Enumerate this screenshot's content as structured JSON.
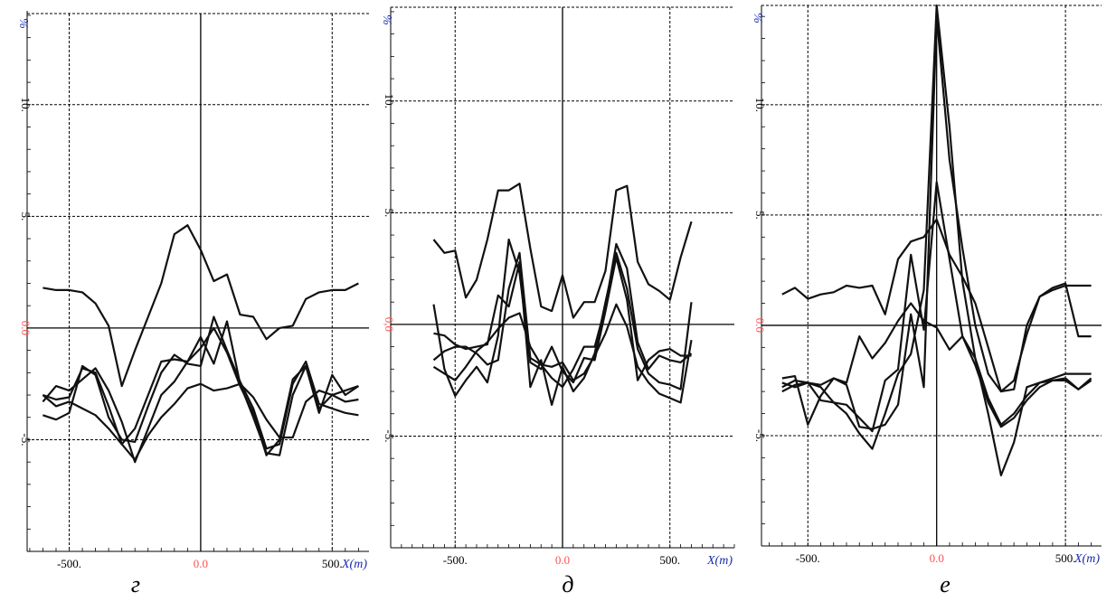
{
  "colors": {
    "line": "#111111",
    "unit_label": "#1a2bb0",
    "zero_label": "#ff5050",
    "grid": "#000000"
  },
  "chart_data": [
    {
      "type": "line",
      "panel_label": "г",
      "ylabel": "%",
      "xlabel": "X(m)",
      "xlim": [
        -660,
        640
      ],
      "ylim": [
        -10,
        14.2
      ],
      "x_ticks": [
        -500,
        0,
        500
      ],
      "x_tick_labels": [
        "-500.",
        "0.0",
        "500."
      ],
      "y_ticks": [
        -5,
        0,
        5,
        10
      ],
      "y_tick_labels": [
        "-5.",
        "0.0",
        "5.",
        "10."
      ],
      "grid": true,
      "series": [
        {
          "x": [
            -600,
            -550,
            -500,
            -450,
            -400,
            -350,
            -300,
            -250,
            -200,
            -150,
            -100,
            -50,
            0,
            50,
            100,
            150,
            200,
            250,
            300,
            350,
            400,
            450,
            500,
            550,
            600
          ],
          "y": [
            1.8,
            1.7,
            1.7,
            1.6,
            1.1,
            0.1,
            -2.6,
            -1.0,
            0.5,
            2.0,
            4.2,
            4.6,
            3.5,
            2.1,
            2.4,
            0.6,
            0.5,
            -0.5,
            0.0,
            0.1,
            1.3,
            1.6,
            1.7,
            1.7,
            2.0
          ]
        },
        {
          "x": [
            -600,
            -550,
            -500,
            -450,
            -400,
            -350,
            -300,
            -250,
            -200,
            -150,
            -100,
            -50,
            0,
            50,
            100,
            150,
            200,
            250,
            300,
            350,
            400,
            450,
            500,
            550,
            600
          ],
          "y": [
            -3.0,
            -3.2,
            -3.1,
            -1.8,
            -2.0,
            -3.5,
            -5.2,
            -4.5,
            -3.0,
            -1.5,
            -1.4,
            -1.5,
            -0.4,
            -1.6,
            0.3,
            -2.5,
            -4.0,
            -5.6,
            -5.7,
            -3.0,
            -1.7,
            -3.8,
            -2.1,
            -3.0,
            -2.6
          ]
        },
        {
          "x": [
            -600,
            -550,
            -500,
            -450,
            -400,
            -350,
            -300,
            -250,
            -200,
            -150,
            -100,
            -50,
            0,
            50,
            100,
            150,
            200,
            250,
            300,
            350,
            400,
            450,
            500,
            550,
            600
          ],
          "y": [
            -3.9,
            -4.1,
            -3.8,
            -1.7,
            -2.1,
            -4.0,
            -5.0,
            -5.1,
            -3.5,
            -2.0,
            -1.2,
            -1.6,
            -1.7,
            0.5,
            -1.0,
            -2.4,
            -3.6,
            -5.4,
            -5.2,
            -2.5,
            -1.5,
            -3.4,
            -3.6,
            -3.8,
            -3.9
          ]
        },
        {
          "x": [
            -600,
            -550,
            -500,
            -450,
            -400,
            -350,
            -300,
            -250,
            -200,
            -150,
            -100,
            -50,
            0,
            50,
            100,
            150,
            200,
            250,
            300,
            350,
            400,
            450,
            500,
            550,
            600
          ],
          "y": [
            -3.3,
            -2.6,
            -2.8,
            -2.3,
            -1.8,
            -2.8,
            -4.2,
            -6.0,
            -4.5,
            -3.0,
            -2.4,
            -1.5,
            -0.9,
            0.0,
            -1.1,
            -2.6,
            -3.8,
            -5.7,
            -5.0,
            -2.3,
            -1.7,
            -3.6,
            -3.0,
            -2.8,
            -2.6
          ]
        },
        {
          "x": [
            -600,
            -550,
            -500,
            -450,
            -400,
            -350,
            -300,
            -250,
            -200,
            -150,
            -100,
            -50,
            0,
            50,
            100,
            150,
            200,
            250,
            300,
            350,
            400,
            450,
            500,
            550,
            600
          ],
          "y": [
            -3.0,
            -3.5,
            -3.3,
            -3.6,
            -3.9,
            -4.5,
            -5.2,
            -5.9,
            -4.8,
            -4.0,
            -3.4,
            -2.7,
            -2.5,
            -2.8,
            -2.7,
            -2.5,
            -3.1,
            -4.1,
            -4.9,
            -4.9,
            -3.3,
            -2.8,
            -3.0,
            -3.3,
            -3.2
          ]
        }
      ]
    },
    {
      "type": "line",
      "panel_label": "д",
      "ylabel": "%",
      "xlabel": "X(m)",
      "xlim": [
        -800,
        800
      ],
      "ylim": [
        -10,
        14.2
      ],
      "x_ticks": [
        -500,
        0,
        500
      ],
      "x_tick_labels": [
        "-500.",
        "0.0",
        "500."
      ],
      "y_ticks": [
        -5,
        0,
        5,
        10
      ],
      "y_tick_labels": [
        "-5.",
        "0,0",
        "5.",
        "10."
      ],
      "grid": true,
      "series": [
        {
          "x": [
            -600,
            -550,
            -500,
            -450,
            -400,
            -350,
            -300,
            -250,
            -200,
            -150,
            -100,
            -50,
            0,
            50,
            100,
            150,
            200,
            250,
            300,
            350,
            400,
            450,
            500,
            550,
            600
          ],
          "y": [
            3.8,
            3.2,
            3.3,
            1.2,
            2.0,
            3.8,
            6.0,
            6.0,
            6.3,
            3.4,
            0.8,
            0.6,
            2.2,
            0.3,
            1.0,
            1.0,
            2.4,
            6.0,
            6.2,
            2.8,
            1.8,
            1.5,
            1.1,
            3.0,
            4.6
          ]
        },
        {
          "x": [
            -600,
            -550,
            -500,
            -450,
            -400,
            -350,
            -300,
            -250,
            -200,
            -150,
            -100,
            -50,
            0,
            50,
            100,
            150,
            200,
            250,
            300,
            350,
            400,
            450,
            500,
            550,
            600
          ],
          "y": [
            0.9,
            -2.0,
            -3.2,
            -2.5,
            -1.9,
            -2.6,
            -0.5,
            3.8,
            2.3,
            -1.7,
            -2.0,
            -1.0,
            -2.1,
            -2.6,
            -1.5,
            -1.6,
            0.6,
            3.0,
            1.1,
            -2.5,
            -1.6,
            -1.2,
            -1.1,
            -1.4,
            -1.4
          ]
        },
        {
          "x": [
            -600,
            -550,
            -500,
            -450,
            -400,
            -350,
            -300,
            -250,
            -200,
            -150,
            -100,
            -50,
            0,
            50,
            100,
            150,
            200,
            250,
            300,
            350,
            400,
            450,
            500,
            550,
            600
          ],
          "y": [
            -1.6,
            -1.2,
            -1.0,
            -1.0,
            -1.3,
            -1.8,
            -1.6,
            1.6,
            3.2,
            -1.5,
            -1.8,
            -2.4,
            -2.8,
            -2.0,
            -1.0,
            -1.0,
            0.8,
            3.6,
            2.5,
            -0.8,
            -2.0,
            -1.4,
            -1.6,
            -1.7,
            -1.3
          ]
        },
        {
          "x": [
            -600,
            -550,
            -500,
            -450,
            -400,
            -350,
            -300,
            -250,
            -200,
            -150,
            -100,
            -50,
            0,
            50,
            100,
            150,
            200,
            250,
            300,
            350,
            400,
            450,
            500,
            550,
            600
          ],
          "y": [
            -0.4,
            -0.5,
            -0.9,
            -1.1,
            -1.0,
            -0.9,
            1.3,
            0.8,
            2.8,
            -2.8,
            -1.6,
            -3.6,
            -1.9,
            -3.0,
            -2.4,
            -1.3,
            1.0,
            3.2,
            1.6,
            -1.1,
            -2.2,
            -2.6,
            -2.7,
            -2.9,
            1.0
          ]
        },
        {
          "x": [
            -600,
            -550,
            -500,
            -450,
            -400,
            -350,
            -300,
            -250,
            -200,
            -150,
            -100,
            -50,
            0,
            50,
            100,
            150,
            200,
            250,
            300,
            350,
            400,
            450,
            500,
            550,
            600
          ],
          "y": [
            -1.9,
            -2.2,
            -2.5,
            -1.9,
            -1.2,
            -0.8,
            -0.2,
            0.3,
            0.5,
            -1.0,
            -1.8,
            -1.9,
            -1.7,
            -2.5,
            -2.2,
            -1.4,
            -0.4,
            0.9,
            -0.1,
            -1.9,
            -2.6,
            -3.1,
            -3.3,
            -3.5,
            -0.7
          ]
        }
      ]
    },
    {
      "type": "line",
      "panel_label": "е",
      "ylabel": "%",
      "xlabel": "X(m)",
      "xlim": [
        -680,
        640
      ],
      "ylim": [
        -10,
        14.5
      ],
      "x_ticks": [
        -500,
        0,
        500
      ],
      "x_tick_labels": [
        "-500.",
        "0.0",
        "500."
      ],
      "y_ticks": [
        -5,
        0,
        5,
        10
      ],
      "y_tick_labels": [
        "-5.",
        "0.0",
        "5.",
        "10."
      ],
      "grid": true,
      "series": [
        {
          "x": [
            -600,
            -550,
            -500,
            -450,
            -400,
            -350,
            -300,
            -250,
            -200,
            -150,
            -100,
            -50,
            0,
            50,
            100,
            150,
            200,
            250,
            300,
            350,
            400,
            450,
            500,
            550,
            600
          ],
          "y": [
            1.4,
            1.7,
            1.2,
            1.4,
            1.5,
            1.8,
            1.7,
            1.8,
            0.5,
            3.0,
            3.8,
            4.0,
            4.8,
            3.2,
            2.2,
            1.0,
            -1.0,
            -3.0,
            -2.9,
            0.0,
            1.3,
            1.7,
            1.9,
            -0.5,
            -0.5
          ]
        },
        {
          "x": [
            -600,
            -550,
            -500,
            -450,
            -400,
            -350,
            -300,
            -250,
            -200,
            -150,
            -100,
            -50,
            0,
            50,
            100,
            150,
            200,
            250,
            300,
            350,
            400,
            450,
            500,
            550,
            600
          ],
          "y": [
            -2.4,
            -2.3,
            -4.5,
            -3.2,
            -2.4,
            -2.7,
            -4.6,
            -4.7,
            -4.5,
            -3.6,
            0.5,
            -2.8,
            14.0,
            7.5,
            3.5,
            0.0,
            -2.2,
            -3.0,
            -2.5,
            -0.4,
            1.3,
            1.6,
            1.8,
            1.8,
            1.8
          ]
        },
        {
          "x": [
            -600,
            -550,
            -500,
            -450,
            -400,
            -350,
            -300,
            -250,
            -200,
            -150,
            -100,
            -50,
            0,
            50,
            100,
            150,
            200,
            250,
            300,
            350,
            400,
            450,
            500,
            550,
            600
          ],
          "y": [
            -3.0,
            -2.7,
            -2.6,
            -2.8,
            -3.5,
            -4.0,
            -4.9,
            -5.6,
            -4.0,
            -2.2,
            -1.3,
            1.6,
            14.5,
            9.0,
            2.0,
            -1.5,
            -4.0,
            -6.8,
            -5.3,
            -2.8,
            -2.6,
            -2.4,
            -2.2,
            -2.2,
            -2.2
          ]
        },
        {
          "x": [
            -600,
            -550,
            -500,
            -450,
            -400,
            -350,
            -300,
            -250,
            -200,
            -150,
            -100,
            -50,
            0,
            50,
            100,
            150,
            200,
            250,
            300,
            350,
            400,
            450,
            500,
            550,
            600
          ],
          "y": [
            -2.6,
            -2.8,
            -2.6,
            -3.4,
            -3.5,
            -3.6,
            -4.2,
            -4.8,
            -2.5,
            -2.0,
            3.2,
            -0.2,
            6.5,
            3.0,
            -0.5,
            -1.5,
            -3.3,
            -4.5,
            -4.0,
            -3.2,
            -2.6,
            -2.5,
            -2.5,
            -2.9,
            -2.5
          ]
        },
        {
          "x": [
            -600,
            -550,
            -500,
            -450,
            -400,
            -350,
            -300,
            -250,
            -200,
            -150,
            -100,
            -50,
            0,
            50,
            100,
            150,
            200,
            250,
            300,
            350,
            400,
            450,
            500,
            550,
            600
          ],
          "y": [
            -2.8,
            -2.5,
            -2.6,
            -2.7,
            -2.4,
            -2.6,
            -0.5,
            -1.5,
            -0.8,
            0.2,
            1.0,
            0.2,
            -0.1,
            -1.1,
            -0.5,
            -1.8,
            -3.5,
            -4.6,
            -4.2,
            -3.4,
            -2.8,
            -2.5,
            -2.4,
            -2.9,
            -2.4
          ]
        }
      ]
    }
  ]
}
